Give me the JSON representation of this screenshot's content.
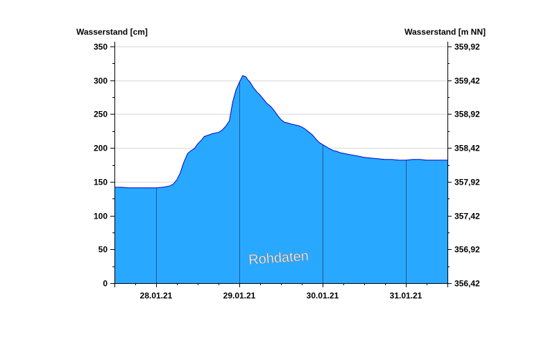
{
  "chart_data": {
    "type": "area",
    "watermark": "Rohdaten",
    "y_left": {
      "label": "Wasserstand [cm]",
      "ylim": [
        0,
        350
      ],
      "ticks": [
        "0",
        "50",
        "100",
        "150",
        "200",
        "250",
        "300",
        "350"
      ]
    },
    "y_right": {
      "label": "Wasserstand [m NN]",
      "ylim": [
        356.42,
        359.92
      ],
      "ticks": [
        "356,42",
        "356,92",
        "357,42",
        "357,92",
        "358,42",
        "358,92",
        "359,42",
        "359,92"
      ]
    },
    "x_axis": {
      "ticks": [
        "28.01.21",
        "29.01.21",
        "30.01.21",
        "31.01.21"
      ],
      "range_days": [
        27.5,
        31.5
      ]
    },
    "grid": "horizontal",
    "colors": {
      "fill": "#29a8ff",
      "line": "#0000cc",
      "grid": "#d8d8d8",
      "day_lines": "#1f5a8c"
    },
    "series": [
      {
        "x": [
          27.5,
          27.58,
          27.67,
          27.75,
          27.83,
          27.92,
          28.0,
          28.08,
          28.13,
          28.17,
          28.21,
          28.25,
          28.29,
          28.33,
          28.38,
          28.42,
          28.46,
          28.5,
          28.54,
          28.58,
          28.63,
          28.67,
          28.71,
          28.75,
          28.79,
          28.83,
          28.88,
          28.92,
          28.96,
          29.0,
          29.04,
          29.08,
          29.1,
          29.13,
          29.15,
          29.17,
          29.21,
          29.25,
          29.29,
          29.33,
          29.38,
          29.42,
          29.46,
          29.5,
          29.54,
          29.58,
          29.63,
          29.67,
          29.71,
          29.75,
          29.79,
          29.83,
          29.88,
          29.92,
          29.96,
          30.0,
          30.04,
          30.08,
          30.13,
          30.17,
          30.21,
          30.25,
          30.29,
          30.33,
          30.38,
          30.42,
          30.46,
          30.5,
          30.58,
          30.67,
          30.75,
          30.83,
          30.92,
          31.0,
          31.08,
          31.17,
          31.25,
          31.33,
          31.42,
          31.5
        ],
        "y": [
          142,
          142,
          141,
          141,
          141,
          141,
          141,
          142,
          143,
          144,
          147,
          153,
          163,
          178,
          192,
          196,
          199,
          206,
          211,
          217,
          219,
          221,
          222,
          223,
          226,
          231,
          240,
          268,
          286,
          297,
          307,
          305,
          301,
          297,
          293,
          289,
          283,
          278,
          272,
          266,
          261,
          255,
          248,
          242,
          238,
          237,
          235,
          234,
          233,
          231,
          228,
          224,
          219,
          213,
          208,
          205,
          202,
          199,
          196,
          195,
          193,
          192,
          191,
          190,
          189,
          188,
          187,
          186,
          185,
          184,
          183,
          183,
          182,
          182,
          183,
          183,
          182,
          182,
          182,
          182
        ]
      }
    ]
  }
}
